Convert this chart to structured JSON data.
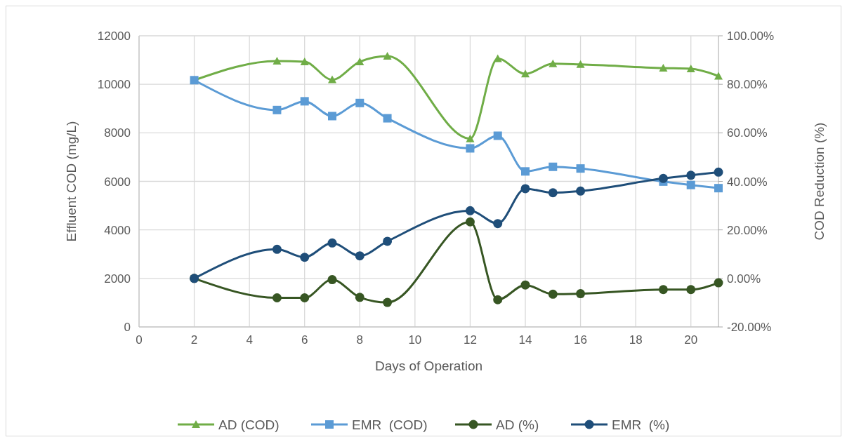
{
  "chart_data": {
    "type": "line",
    "xlabel": "Days of Operation",
    "ylabel": "Effluent COD (mg/L)",
    "y2label": "COD Reduction (%)",
    "xlim": [
      0,
      21
    ],
    "xticks": [
      0,
      2,
      4,
      6,
      8,
      10,
      12,
      14,
      16,
      18,
      20
    ],
    "ylim": [
      0,
      12000
    ],
    "yticks": [
      0,
      2000,
      4000,
      6000,
      8000,
      10000,
      12000
    ],
    "y2lim": [
      -20,
      100
    ],
    "y2ticks": [
      {
        "value": -20,
        "label": "-20.00%"
      },
      {
        "value": 0,
        "label": "0.00%"
      },
      {
        "value": 20,
        "label": "20.00%"
      },
      {
        "value": 40,
        "label": "40.00%"
      },
      {
        "value": 60,
        "label": "60.00%"
      },
      {
        "value": 80,
        "label": "80.00%"
      },
      {
        "value": 100,
        "label": "100.00%"
      }
    ],
    "grid": true,
    "legend": "bottom",
    "line_style": "solid",
    "x": [
      2,
      5,
      6,
      7,
      8,
      9,
      12,
      13,
      14,
      15,
      16,
      19,
      20,
      21
    ],
    "series": [
      {
        "name": "AD (COD)",
        "color": "#70ad47",
        "marker": "triangle",
        "values": [
          10170,
          10960,
          10930,
          10190,
          10930,
          11160,
          7760,
          11060,
          10430,
          10850,
          10820,
          10670,
          10640,
          10340
        ]
      },
      {
        "name": "EMR  (COD)",
        "color": "#5b9bd5",
        "marker": "square",
        "values": [
          10170,
          8940,
          9300,
          8690,
          9230,
          8600,
          7360,
          7880,
          6410,
          6600,
          6530,
          5990,
          5850,
          5720
        ]
      },
      {
        "name": "AD (%)",
        "color": "#375623",
        "marker": "circle",
        "axis": "y2",
        "values": [
          0,
          -8.0,
          -8.0,
          -0.5,
          -7.8,
          -9.9,
          23.3,
          -8.8,
          -2.7,
          -6.5,
          -6.3,
          -4.6,
          -4.6,
          -1.8
        ]
      },
      {
        "name": "EMR  (%)",
        "color": "#1f4e79",
        "marker": "circle",
        "axis": "y2",
        "values": [
          0,
          12.0,
          8.7,
          14.6,
          9.3,
          15.3,
          27.9,
          22.6,
          37.0,
          35.3,
          36.0,
          41.2,
          42.5,
          43.8
        ]
      }
    ]
  }
}
